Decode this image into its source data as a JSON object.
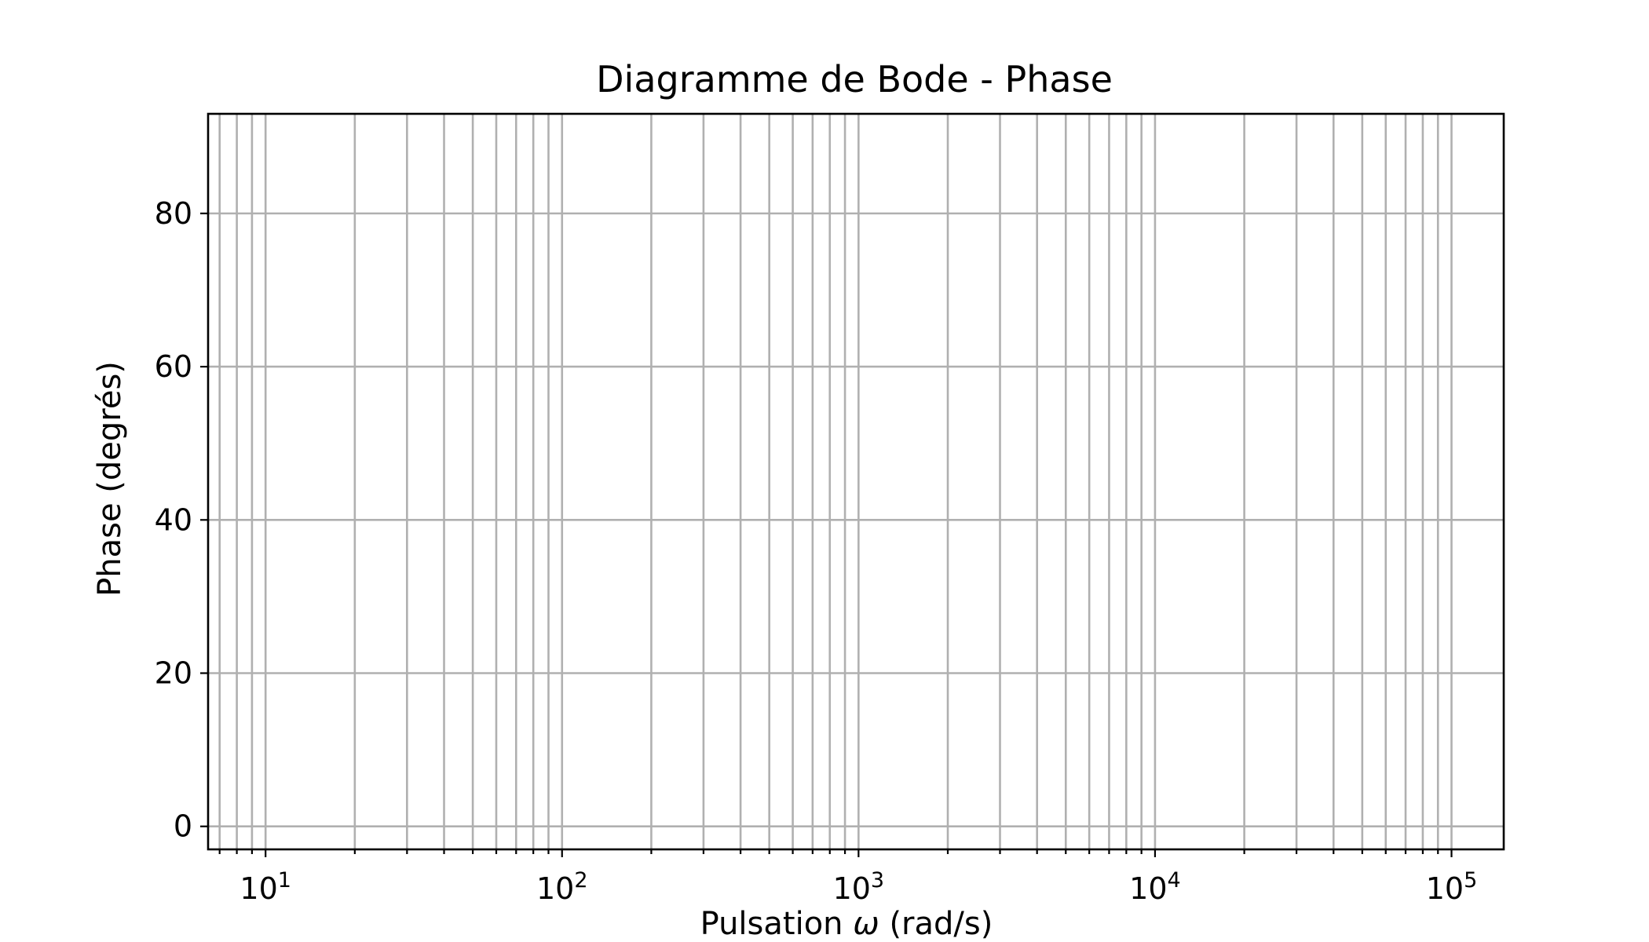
{
  "chart_data": {
    "type": "line",
    "title": "Diagramme de Bode - Phase",
    "xlabel": "Pulsation ω (rad/s)",
    "xlabel_parts": {
      "prefix": "Pulsation ",
      "symbol": "ω",
      "suffix": " (rad/s)"
    },
    "ylabel": "Phase (degrés)",
    "xscale": "log",
    "xlim": [
      6.4,
      150000
    ],
    "ylim": [
      -3,
      93
    ],
    "x_major_ticks": [
      10,
      100,
      1000,
      10000,
      100000
    ],
    "x_major_tick_labels": [
      {
        "base": "10",
        "exp": "1"
      },
      {
        "base": "10",
        "exp": "2"
      },
      {
        "base": "10",
        "exp": "3"
      },
      {
        "base": "10",
        "exp": "4"
      },
      {
        "base": "10",
        "exp": "5"
      }
    ],
    "y_ticks": [
      0,
      20,
      40,
      60,
      80
    ],
    "y_tick_labels": [
      "0",
      "20",
      "40",
      "60",
      "80"
    ],
    "grid": "both (major and minor)",
    "series": [],
    "colors": {
      "grid": "#b0b0b0",
      "axes": "#000000",
      "background": "#ffffff"
    }
  }
}
